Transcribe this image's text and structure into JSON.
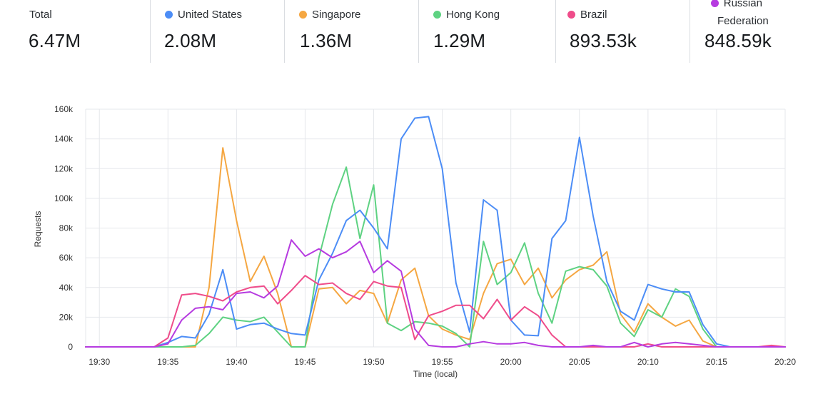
{
  "summary": {
    "total": {
      "label": "Total",
      "value": "6.47M"
    },
    "countries": [
      {
        "label": "United States",
        "value": "2.08M",
        "color": "#4c8df6"
      },
      {
        "label": "Singapore",
        "value": "1.36M",
        "color": "#f5a742"
      },
      {
        "label": "Hong Kong",
        "value": "1.29M",
        "color": "#5ed282"
      },
      {
        "label": "Brazil",
        "value": "893.53k",
        "color": "#ef4c8a"
      },
      {
        "label_line1": "Russian",
        "label_line2": "Federation",
        "value": "848.59k",
        "color": "#b63be0"
      }
    ]
  },
  "chart_data": {
    "type": "line",
    "xlabel": "Time (local)",
    "ylabel": "Requests",
    "ylim": [
      0,
      160000
    ],
    "yticks": [
      0,
      20000,
      40000,
      60000,
      80000,
      100000,
      120000,
      140000,
      160000
    ],
    "ytick_labels": [
      "0",
      "20k",
      "40k",
      "60k",
      "80k",
      "100k",
      "120k",
      "140k",
      "160k"
    ],
    "xtick_labels": [
      "19:30",
      "19:35",
      "19:40",
      "19:45",
      "19:50",
      "19:55",
      "20:00",
      "20:05",
      "20:10",
      "20:15",
      "20:20"
    ],
    "grid": true,
    "x": [
      "19:29",
      "19:30",
      "19:31",
      "19:32",
      "19:33",
      "19:34",
      "19:35",
      "19:36",
      "19:37",
      "19:38",
      "19:39",
      "19:40",
      "19:41",
      "19:42",
      "19:43",
      "19:44",
      "19:45",
      "19:46",
      "19:47",
      "19:48",
      "19:49",
      "19:50",
      "19:51",
      "19:52",
      "19:53",
      "19:54",
      "19:55",
      "19:56",
      "19:57",
      "19:58",
      "19:59",
      "20:00",
      "20:01",
      "20:02",
      "20:03",
      "20:04",
      "20:05",
      "20:06",
      "20:07",
      "20:08",
      "20:09",
      "20:10",
      "20:11",
      "20:12",
      "20:13",
      "20:14",
      "20:15",
      "20:16",
      "20:17",
      "20:18",
      "20:19",
      "20:20"
    ],
    "series": [
      {
        "name": "United States",
        "color": "#4c8df6",
        "values": [
          0,
          0,
          0,
          0,
          0,
          0,
          3000,
          7000,
          6000,
          22000,
          52000,
          12000,
          15000,
          16000,
          12000,
          9000,
          8000,
          45000,
          63000,
          85000,
          92000,
          80000,
          66000,
          140000,
          154000,
          155000,
          120000,
          43000,
          10000,
          99000,
          92000,
          18000,
          8000,
          7500,
          73000,
          85000,
          141000,
          88000,
          44000,
          24000,
          18000,
          42000,
          39000,
          37000,
          37000,
          15000,
          2000,
          0,
          0,
          0,
          0,
          0
        ]
      },
      {
        "name": "Singapore",
        "color": "#f5a742",
        "values": [
          0,
          0,
          0,
          0,
          0,
          0,
          0,
          0,
          0,
          40000,
          134000,
          85000,
          44000,
          61000,
          36000,
          0,
          0,
          39000,
          40000,
          29000,
          38000,
          36000,
          16000,
          45000,
          53000,
          21000,
          12000,
          8000,
          5000,
          36000,
          56000,
          59000,
          42000,
          53000,
          33000,
          45000,
          52000,
          55000,
          64000,
          22000,
          10000,
          29000,
          20000,
          14000,
          18000,
          4000,
          0,
          0,
          0,
          0,
          0,
          0
        ]
      },
      {
        "name": "Hong Kong",
        "color": "#5ed282",
        "values": [
          0,
          0,
          0,
          0,
          0,
          0,
          0,
          0,
          1000,
          9000,
          20000,
          18000,
          17000,
          20000,
          10000,
          0,
          0,
          60000,
          96000,
          121000,
          73000,
          109000,
          16000,
          11000,
          17000,
          16000,
          14000,
          9000,
          0,
          71000,
          42000,
          50000,
          70000,
          36000,
          16000,
          51000,
          54000,
          52000,
          41000,
          16000,
          7000,
          25000,
          20000,
          39000,
          34000,
          12000,
          0,
          0,
          0,
          0,
          0,
          0
        ]
      },
      {
        "name": "Brazil",
        "color": "#ef4c8a",
        "values": [
          0,
          0,
          0,
          0,
          0,
          0,
          6000,
          35000,
          36000,
          34000,
          31000,
          37000,
          40000,
          41000,
          29000,
          38000,
          48000,
          42000,
          43000,
          36000,
          32000,
          44000,
          41000,
          40000,
          5000,
          21000,
          24000,
          28000,
          28000,
          19000,
          32000,
          18000,
          27000,
          21000,
          8000,
          0,
          0,
          0,
          0,
          0,
          0,
          2000,
          0,
          0,
          0,
          0,
          0,
          0,
          0,
          0,
          1000,
          0
        ]
      },
      {
        "name": "Russian Federation",
        "color": "#b63be0",
        "values": [
          0,
          0,
          0,
          0,
          0,
          0,
          2000,
          18000,
          26000,
          27000,
          25000,
          36000,
          37000,
          33000,
          41000,
          72000,
          61000,
          66000,
          60000,
          64000,
          71000,
          50000,
          58000,
          51000,
          12000,
          1000,
          0,
          0,
          2000,
          3500,
          2000,
          2000,
          3000,
          1000,
          0,
          0,
          0,
          1000,
          0,
          0,
          3000,
          0,
          2000,
          3000,
          2000,
          1000,
          0,
          0,
          0,
          0,
          0,
          0
        ]
      }
    ]
  }
}
